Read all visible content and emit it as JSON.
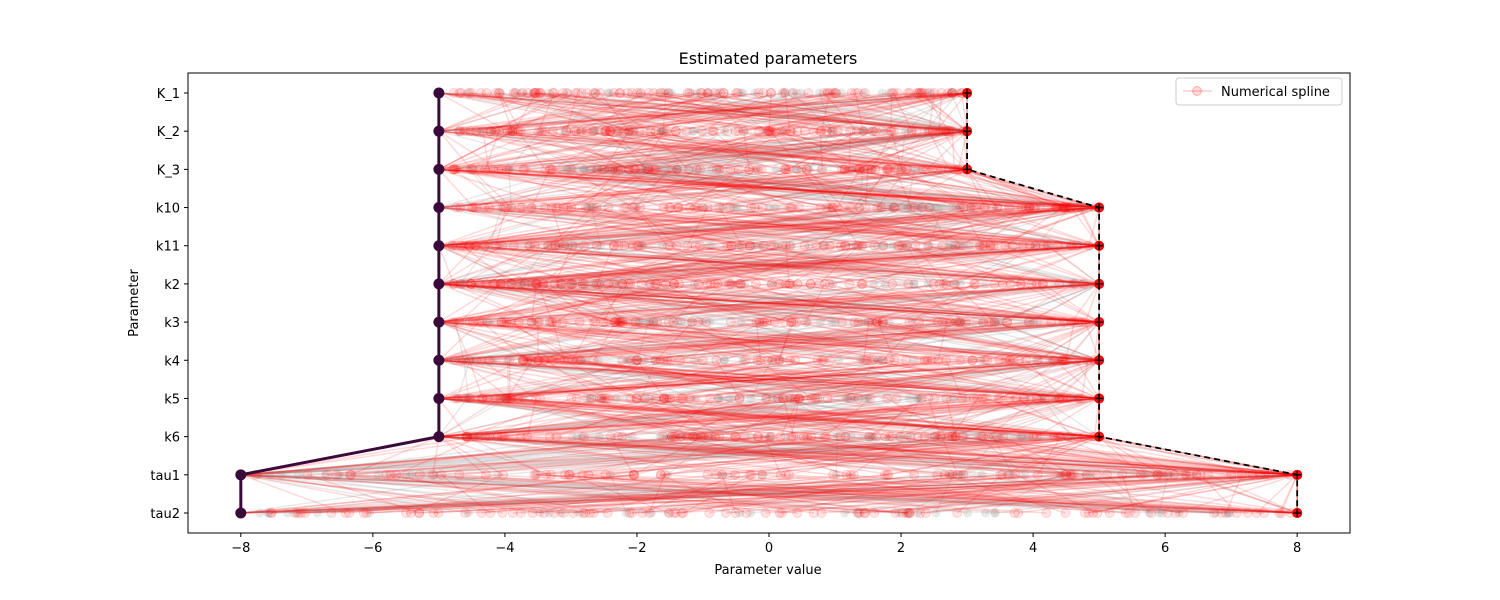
{
  "chart_data": {
    "type": "line",
    "title": "Estimated parameters",
    "xlabel": "Parameter value",
    "ylabel": "Parameter",
    "xlim": [
      -8.8,
      8.8
    ],
    "xticks": [
      -8,
      -6,
      -4,
      -2,
      0,
      2,
      4,
      6,
      8
    ],
    "xtick_labels": [
      "−8",
      "−6",
      "−4",
      "−2",
      "0",
      "2",
      "4",
      "6",
      "8"
    ],
    "categories": [
      "K_1",
      "K_2",
      "K_3",
      "k10",
      "k11",
      "k2",
      "k3",
      "k4",
      "k5",
      "k6",
      "tau1",
      "tau2"
    ],
    "legend": {
      "placement": "top-right",
      "entries": [
        "Numerical spline"
      ]
    },
    "colors": {
      "spline": "#ff0000",
      "other": "#999999",
      "lower": "#3a0a3a",
      "upper": "#000000"
    },
    "series": [
      {
        "values": [
          -5,
          -5,
          -5,
          -5,
          -5,
          -5,
          -5,
          -5,
          -5,
          -5,
          -8,
          -8
        ],
        "style": "solid-markers"
      },
      {
        "values": [
          3,
          3,
          3,
          5,
          5,
          5,
          5,
          5,
          5,
          5,
          8,
          8
        ],
        "style": "dashed-plus"
      }
    ]
  }
}
